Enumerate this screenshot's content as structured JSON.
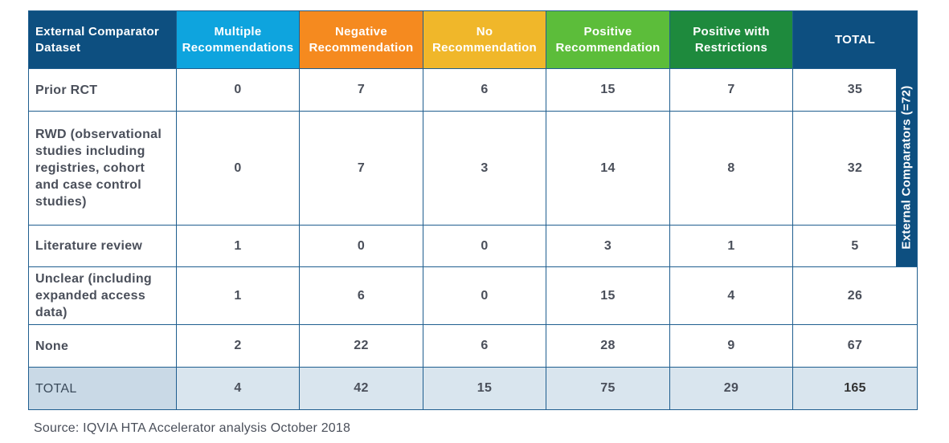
{
  "chart_data": {
    "type": "table",
    "row_header": "External Comparator Dataset",
    "columns": [
      {
        "label": "Multiple Recommendations",
        "color": "#0ea4de"
      },
      {
        "label": "Negative Recommendation",
        "color": "#f58a1f"
      },
      {
        "label": "No Recommendation",
        "color": "#f0b72a"
      },
      {
        "label": "Positive Recommendation",
        "color": "#5cbd3a"
      },
      {
        "label": "Positive with Restrictions",
        "color": "#1e8a3d"
      },
      {
        "label": "TOTAL",
        "color": "#0d4f80"
      }
    ],
    "header_bg": "#0d4f80",
    "rows": [
      {
        "label": "Prior RCT",
        "values": [
          0,
          7,
          6,
          15,
          7,
          35
        ]
      },
      {
        "label": "RWD (observational studies including registries, cohort and case control studies)",
        "values": [
          0,
          7,
          3,
          14,
          8,
          32
        ]
      },
      {
        "label": "Literature review",
        "values": [
          1,
          0,
          0,
          3,
          1,
          5
        ]
      },
      {
        "label": "Unclear (including expanded access data)",
        "values": [
          1,
          6,
          0,
          15,
          4,
          26
        ]
      },
      {
        "label": "None",
        "values": [
          2,
          22,
          6,
          28,
          9,
          67
        ]
      },
      {
        "label": "TOTAL",
        "values": [
          4,
          42,
          15,
          75,
          29,
          165
        ]
      }
    ],
    "side_label": "External Comparators (=72)",
    "source": "Source: IQVIA HTA Accelerator analysis October 2018"
  }
}
